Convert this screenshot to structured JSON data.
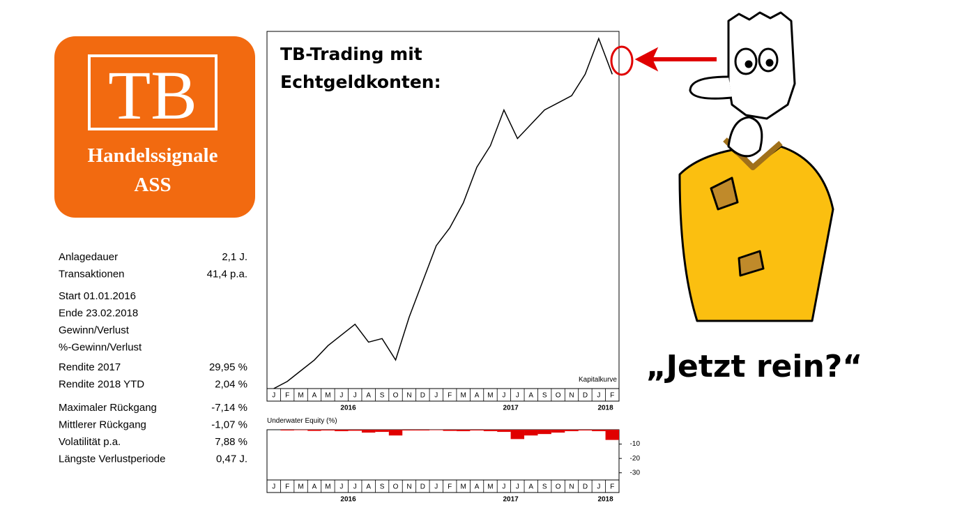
{
  "logo": {
    "title": "TB",
    "line1": "Handelssignale",
    "line2": "ASS"
  },
  "stats": [
    [
      {
        "label": "Anlagedauer",
        "value": "2,1 J."
      },
      {
        "label": "Transaktionen",
        "value": "41,4 p.a."
      }
    ],
    [
      {
        "label": "Start  01.01.2016"
      },
      {
        "label": "Ende 23.02.2018"
      },
      {
        "label": "Gewinn/Verlust"
      },
      {
        "label": "%-Gewinn/Verlust"
      }
    ],
    [
      {
        "label": "Rendite 2017",
        "value": "29,95 %"
      },
      {
        "label": "Rendite 2018 YTD",
        "value": "2,04 %"
      }
    ],
    [
      {
        "label": "Maximaler Rückgang",
        "value": "-7,14 %"
      },
      {
        "label": "Mittlerer Rückgang",
        "value": "-1,07 %"
      },
      {
        "label": "Volatilität p.a.",
        "value": "7,88 %"
      },
      {
        "label": "Längste Verlustperiode",
        "value": "0,47 J."
      }
    ]
  ],
  "caption": "„Jetzt rein?“",
  "chart_data": [
    {
      "type": "line",
      "title": [
        "TB-Trading mit",
        "Echtgeldkonten:"
      ],
      "annotation": "Kapitalkurve",
      "categories": [
        "J",
        "F",
        "M",
        "A",
        "M",
        "J",
        "J",
        "A",
        "S",
        "O",
        "N",
        "D",
        "J",
        "F",
        "M",
        "A",
        "M",
        "J",
        "J",
        "A",
        "S",
        "O",
        "N",
        "D",
        "J",
        "F"
      ],
      "year_groups": [
        {
          "label": "2016",
          "months": 12
        },
        {
          "label": "2017",
          "months": 12
        },
        {
          "label": "2018",
          "months": 2
        }
      ],
      "values": [
        0,
        2,
        5,
        8,
        12,
        15,
        18,
        13,
        14,
        8,
        20,
        30,
        40,
        45,
        52,
        62,
        68,
        78,
        70,
        74,
        78,
        80,
        82,
        88,
        98,
        88
      ],
      "color": "#000000",
      "ylim": [
        0,
        100
      ]
    },
    {
      "type": "bar",
      "title": "Underwater Equity (%)",
      "categories": [
        "J",
        "F",
        "M",
        "A",
        "M",
        "J",
        "J",
        "A",
        "S",
        "O",
        "N",
        "D",
        "J",
        "F",
        "M",
        "A",
        "M",
        "J",
        "J",
        "A",
        "S",
        "O",
        "N",
        "D",
        "J",
        "F"
      ],
      "year_groups": [
        {
          "label": "2016",
          "months": 12
        },
        {
          "label": "2017",
          "months": 12
        },
        {
          "label": "2018",
          "months": 2
        }
      ],
      "values": [
        0,
        -0.5,
        -0.3,
        -0.8,
        -0.5,
        -1,
        -0.7,
        -2,
        -1.5,
        -4,
        -0.5,
        -0.5,
        -0.3,
        -0.8,
        -1,
        -0.5,
        -1,
        -1.5,
        -6.5,
        -4,
        -3,
        -2,
        -1,
        -0.5,
        -1,
        -7.1
      ],
      "color": "#e00000",
      "ylim": [
        -35,
        0
      ],
      "yticks": [
        -10,
        -20,
        -30
      ]
    }
  ]
}
